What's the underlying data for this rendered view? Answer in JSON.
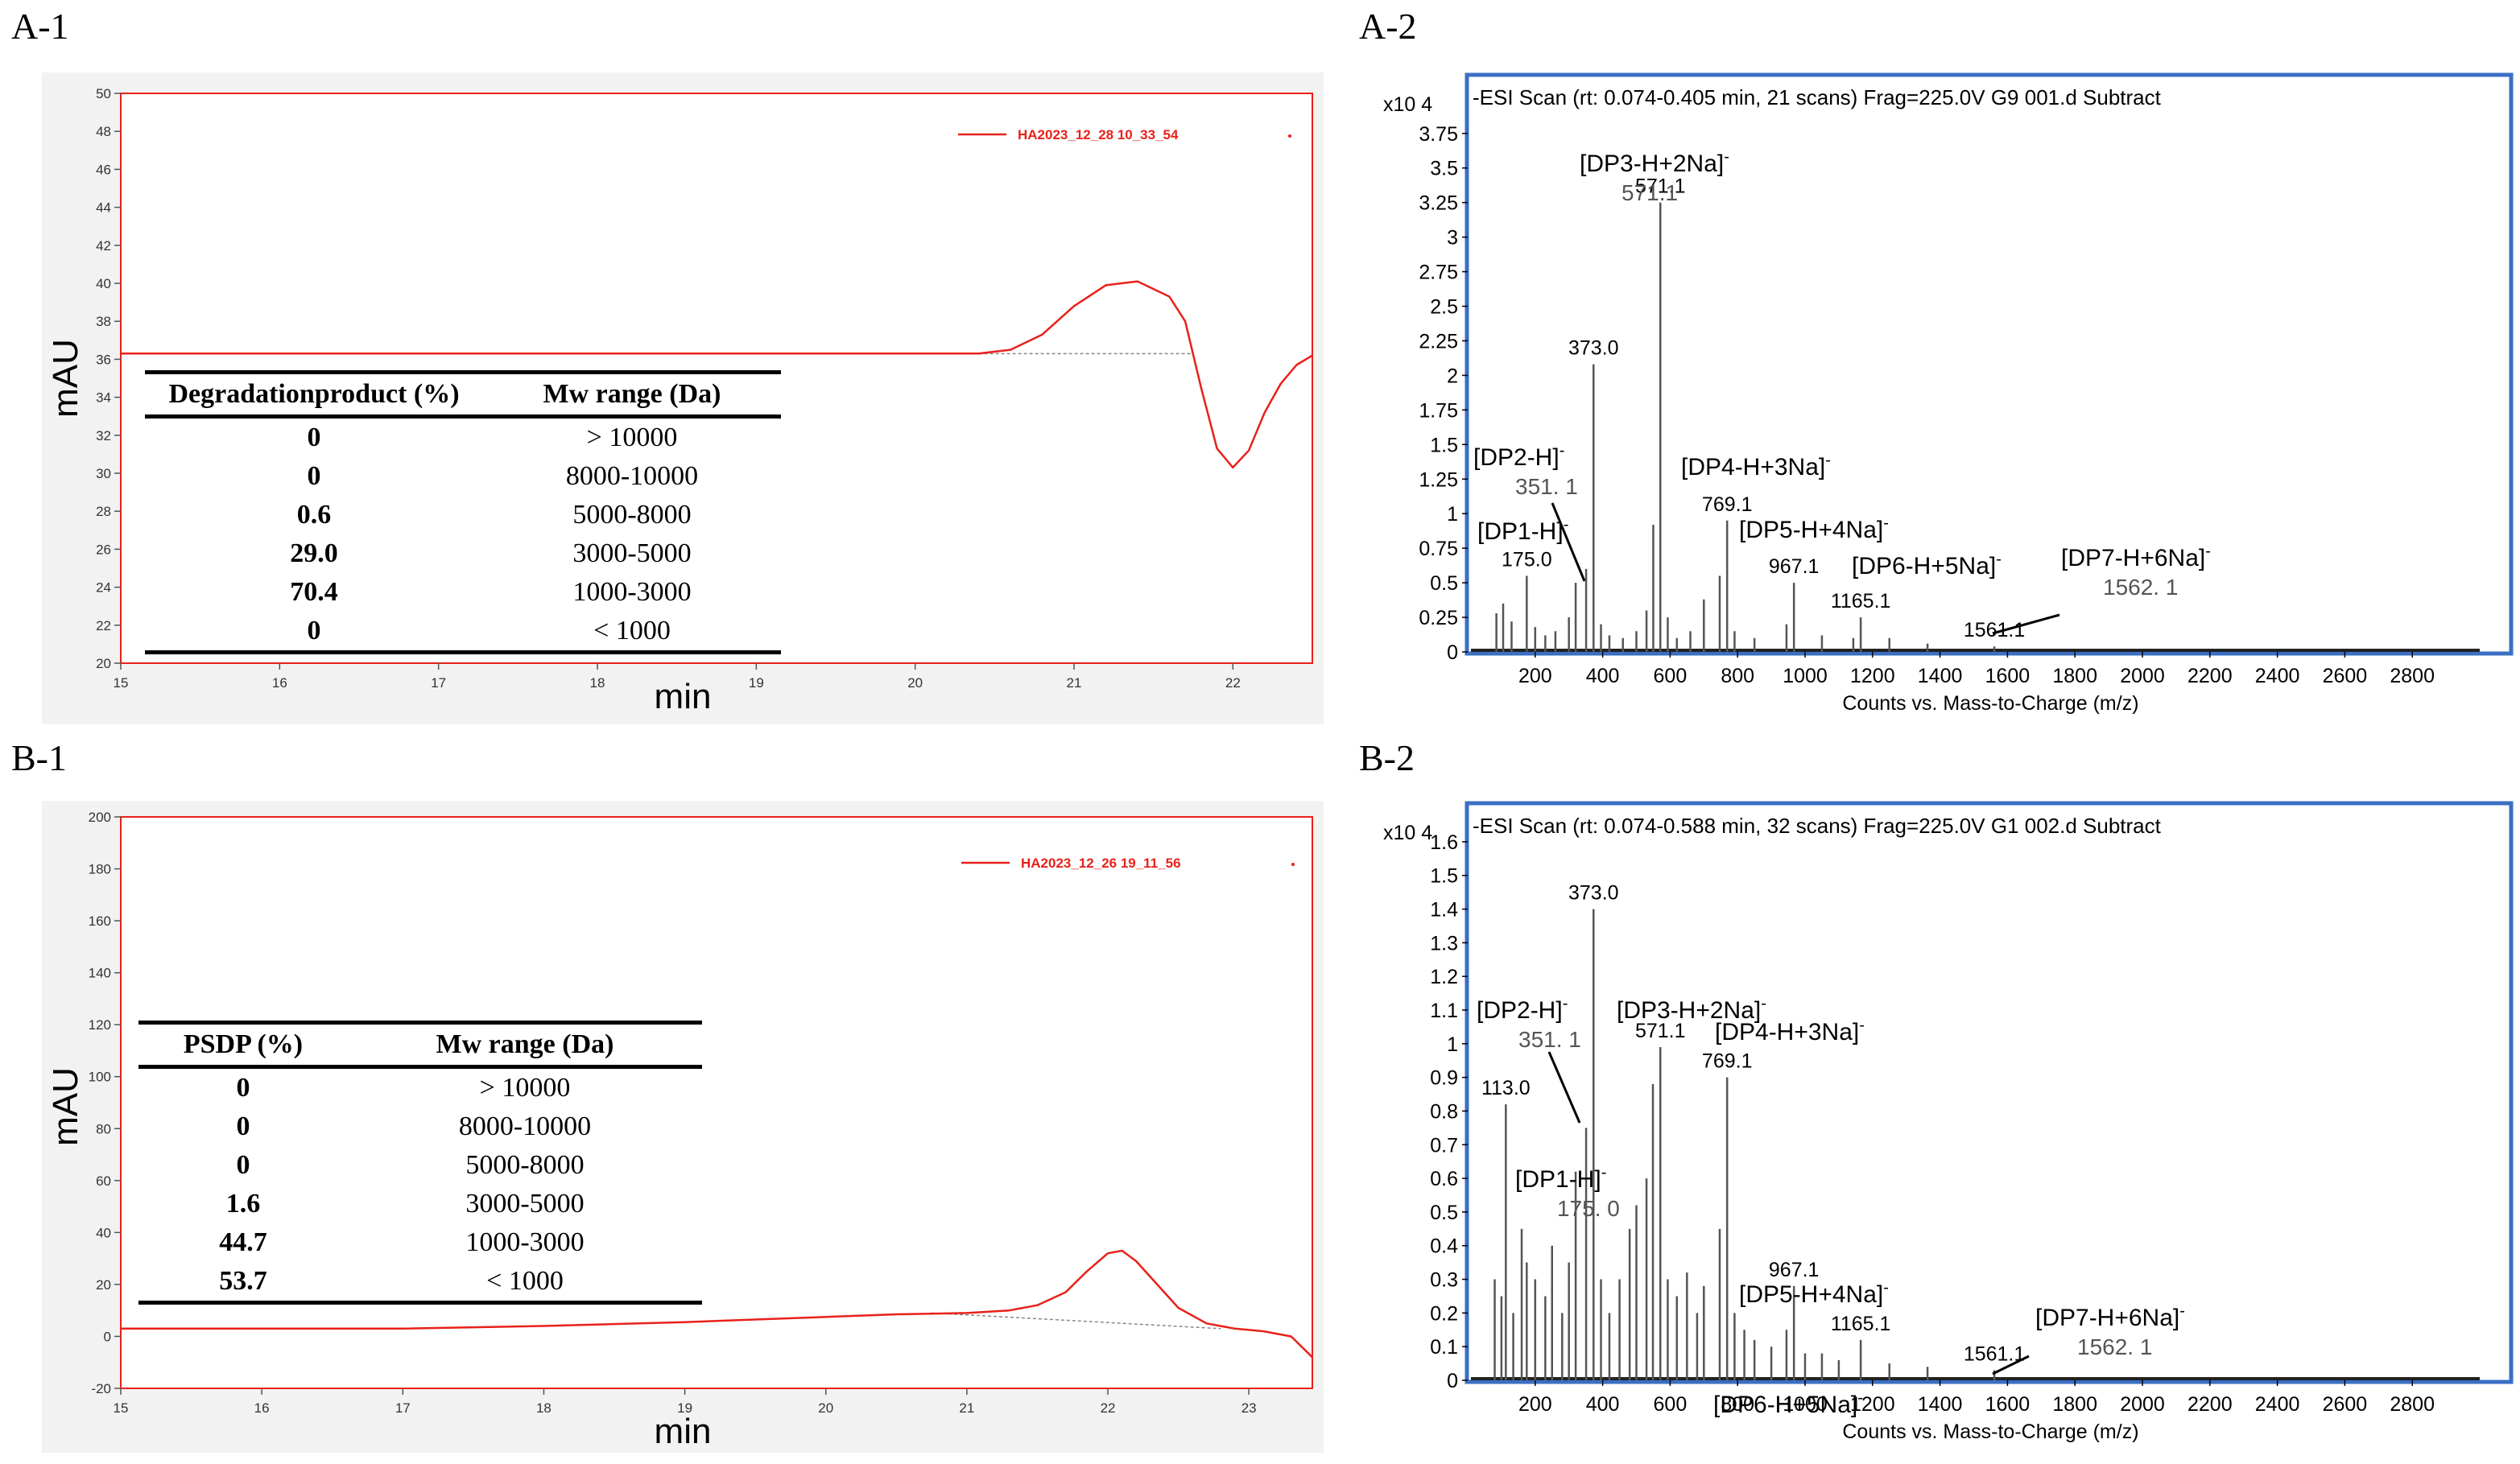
{
  "panels": {
    "a1": "A-1",
    "a2": "A-2",
    "b1": "B-1",
    "b2": "B-2"
  },
  "chart_data": [
    {
      "id": "A-1",
      "type": "line",
      "xlabel": "min",
      "ylabel": "mAU",
      "xlim": [
        15,
        22.5
      ],
      "ylim": [
        20,
        50
      ],
      "xticks": [
        15,
        16,
        17,
        18,
        19,
        20,
        21,
        22
      ],
      "yticks": [
        20,
        22,
        24,
        26,
        28,
        30,
        32,
        34,
        36,
        38,
        40,
        42,
        44,
        46,
        48,
        50
      ],
      "legend": "HA2023_12_28 10_33_54",
      "legend_position": "top-right",
      "color": "#e8211a",
      "series": [
        {
          "name": "HA2023_12_28 10_33_54",
          "x": [
            15,
            16,
            17,
            18,
            19,
            20,
            20.4,
            20.6,
            20.8,
            21.0,
            21.2,
            21.4,
            21.6,
            21.7,
            21.8,
            21.9,
            22.0,
            22.1,
            22.2,
            22.3,
            22.4,
            22.5
          ],
          "y": [
            36.3,
            36.3,
            36.3,
            36.3,
            36.3,
            36.3,
            36.3,
            36.5,
            37.3,
            38.8,
            39.9,
            40.1,
            39.3,
            38.0,
            34.5,
            31.3,
            30.3,
            31.2,
            33.2,
            34.7,
            35.7,
            36.2
          ]
        }
      ],
      "baseline": {
        "x": [
          20.4,
          21.75
        ],
        "y": [
          36.3,
          36.3
        ]
      },
      "table": {
        "headers": [
          "Degradationproduct (%)",
          "Mw range (Da)"
        ],
        "rows": [
          [
            "0",
            "> 10000"
          ],
          [
            "0",
            "8000-10000"
          ],
          [
            "0.6",
            "5000-8000"
          ],
          [
            "29.0",
            "3000-5000"
          ],
          [
            "70.4",
            "1000-3000"
          ],
          [
            "0",
            "< 1000"
          ]
        ]
      }
    },
    {
      "id": "A-2",
      "type": "bar",
      "title": "-ESI Scan (rt: 0.074-0.405 min, 21 scans) Frag=225.0V G9  001.d  Subtract",
      "xlabel": "Counts vs. Mass-to-Charge (m/z)",
      "y_multiplier": "x10 4",
      "xlim": [
        0,
        3000
      ],
      "ylim": [
        0,
        3.9
      ],
      "xticks": [
        200,
        400,
        600,
        800,
        1000,
        1200,
        1400,
        1600,
        1800,
        2000,
        2200,
        2400,
        2600,
        2800
      ],
      "yticks": [
        "0",
        "0.25",
        "0.5",
        "0.75",
        "1",
        "1.25",
        "1.5",
        "1.75",
        "2",
        "2.25",
        "2.5",
        "2.75",
        "3",
        "3.25",
        "3.5",
        "3.75"
      ],
      "peaks": [
        {
          "mz": 85,
          "i": 0.28
        },
        {
          "mz": 105,
          "i": 0.35
        },
        {
          "mz": 130,
          "i": 0.22
        },
        {
          "mz": 175,
          "i": 0.55
        },
        {
          "mz": 200,
          "i": 0.18
        },
        {
          "mz": 230,
          "i": 0.12
        },
        {
          "mz": 260,
          "i": 0.15
        },
        {
          "mz": 300,
          "i": 0.25
        },
        {
          "mz": 320,
          "i": 0.5
        },
        {
          "mz": 351,
          "i": 0.6
        },
        {
          "mz": 373,
          "i": 2.08
        },
        {
          "mz": 395,
          "i": 0.2
        },
        {
          "mz": 420,
          "i": 0.12
        },
        {
          "mz": 460,
          "i": 0.1
        },
        {
          "mz": 500,
          "i": 0.15
        },
        {
          "mz": 530,
          "i": 0.3
        },
        {
          "mz": 550,
          "i": 0.92
        },
        {
          "mz": 571,
          "i": 3.25
        },
        {
          "mz": 593,
          "i": 0.25
        },
        {
          "mz": 620,
          "i": 0.1
        },
        {
          "mz": 660,
          "i": 0.15
        },
        {
          "mz": 700,
          "i": 0.38
        },
        {
          "mz": 747,
          "i": 0.55
        },
        {
          "mz": 769,
          "i": 0.95
        },
        {
          "mz": 791,
          "i": 0.15
        },
        {
          "mz": 850,
          "i": 0.1
        },
        {
          "mz": 945,
          "i": 0.2
        },
        {
          "mz": 967,
          "i": 0.5
        },
        {
          "mz": 1050,
          "i": 0.12
        },
        {
          "mz": 1143,
          "i": 0.1
        },
        {
          "mz": 1165,
          "i": 0.25
        },
        {
          "mz": 1250,
          "i": 0.1
        },
        {
          "mz": 1363,
          "i": 0.06
        },
        {
          "mz": 1561,
          "i": 0.04
        }
      ],
      "labels": [
        {
          "text": "373.0",
          "mz": 373,
          "i": 2.08,
          "font": "sans"
        },
        {
          "text": "571.1",
          "mz": 571,
          "i": 3.25,
          "font": "sans"
        },
        {
          "text": "769.1",
          "mz": 769,
          "i": 0.95,
          "font": "sans"
        },
        {
          "text": "967.1",
          "mz": 967,
          "i": 0.5,
          "font": "sans"
        },
        {
          "text": "175.0",
          "mz": 175,
          "i": 0.55,
          "font": "sans"
        },
        {
          "text": "1165.1",
          "mz": 1165,
          "i": 0.25,
          "font": "sans"
        },
        {
          "text": "1561.1",
          "mz": 1561,
          "i": 0.04,
          "font": "sans"
        }
      ],
      "annotations": [
        {
          "text": "[DP3-H+2Na]",
          "sup": "-",
          "sub_text": "571.1"
        },
        {
          "text": "[DP2-H]",
          "sup": "-",
          "sub_text": "351. 1"
        },
        {
          "text": "[DP4-H+3Na]",
          "sup": "-"
        },
        {
          "text": "[DP1-H]",
          "sup": "-"
        },
        {
          "text": "[DP5-H+4Na]",
          "sup": "-"
        },
        {
          "text": "[DP6-H+5Na]",
          "sup": "-"
        },
        {
          "text": "[DP7-H+6Na]",
          "sup": "-",
          "sub_text": "1562. 1"
        }
      ]
    },
    {
      "id": "B-1",
      "type": "line",
      "xlabel": "min",
      "ylabel": "mAU",
      "xlim": [
        15,
        23.45
      ],
      "ylim": [
        -20,
        200
      ],
      "xticks": [
        15,
        16,
        17,
        18,
        19,
        20,
        21,
        22,
        23
      ],
      "yticks": [
        -20,
        0,
        20,
        40,
        60,
        80,
        100,
        120,
        140,
        160,
        180,
        200
      ],
      "legend": "HA2023_12_26 19_11_56",
      "legend_position": "top-right",
      "color": "#e8211a",
      "series": [
        {
          "name": "HA2023_12_26 19_11_56",
          "x": [
            15,
            16,
            17,
            18,
            19,
            20,
            20.5,
            21,
            21.3,
            21.5,
            21.7,
            21.85,
            22.0,
            22.1,
            22.2,
            22.35,
            22.5,
            22.7,
            22.9,
            23.1,
            23.3,
            23.45
          ],
          "y": [
            3,
            3,
            3,
            4,
            5.5,
            7.5,
            8.5,
            9,
            10,
            12,
            17,
            25,
            32,
            33,
            29,
            20,
            11,
            5,
            3,
            2,
            0,
            -8
          ]
        }
      ],
      "baseline": {
        "x": [
          20.75,
          22.8
        ],
        "y": [
          9,
          3
        ]
      },
      "table": {
        "headers": [
          "PSDP (%)",
          "Mw range (Da)"
        ],
        "rows": [
          [
            "0",
            "> 10000"
          ],
          [
            "0",
            "8000-10000"
          ],
          [
            "0",
            "5000-8000"
          ],
          [
            "1.6",
            "3000-5000"
          ],
          [
            "44.7",
            "1000-3000"
          ],
          [
            "53.7",
            "< 1000"
          ]
        ]
      }
    },
    {
      "id": "B-2",
      "type": "bar",
      "title": "-ESI Scan (rt: 0.074-0.588 min, 32 scans) Frag=225.0V G1  002.d  Subtract",
      "xlabel": "Counts vs. Mass-to-Charge (m/z)",
      "y_multiplier": "x10 4",
      "xlim": [
        0,
        3000
      ],
      "ylim": [
        0,
        1.65
      ],
      "xticks": [
        200,
        400,
        600,
        800,
        1000,
        1200,
        1400,
        1600,
        1800,
        2000,
        2200,
        2400,
        2600,
        2800
      ],
      "yticks": [
        "0",
        "0.1",
        "0.2",
        "0.3",
        "0.4",
        "0.5",
        "0.6",
        "0.7",
        "0.8",
        "0.9",
        "1",
        "1.1",
        "1.2",
        "1.3",
        "1.4",
        "1.5",
        "1.6"
      ],
      "peaks": [
        {
          "mz": 80,
          "i": 0.3
        },
        {
          "mz": 100,
          "i": 0.25
        },
        {
          "mz": 113,
          "i": 0.82
        },
        {
          "mz": 135,
          "i": 0.2
        },
        {
          "mz": 160,
          "i": 0.45
        },
        {
          "mz": 175,
          "i": 0.35
        },
        {
          "mz": 200,
          "i": 0.3
        },
        {
          "mz": 230,
          "i": 0.25
        },
        {
          "mz": 250,
          "i": 0.4
        },
        {
          "mz": 280,
          "i": 0.2
        },
        {
          "mz": 300,
          "i": 0.35
        },
        {
          "mz": 320,
          "i": 0.62
        },
        {
          "mz": 351,
          "i": 0.75
        },
        {
          "mz": 373,
          "i": 1.4
        },
        {
          "mz": 395,
          "i": 0.3
        },
        {
          "mz": 420,
          "i": 0.2
        },
        {
          "mz": 450,
          "i": 0.3
        },
        {
          "mz": 480,
          "i": 0.45
        },
        {
          "mz": 500,
          "i": 0.52
        },
        {
          "mz": 530,
          "i": 0.6
        },
        {
          "mz": 549,
          "i": 0.88
        },
        {
          "mz": 571,
          "i": 0.99
        },
        {
          "mz": 593,
          "i": 0.3
        },
        {
          "mz": 620,
          "i": 0.25
        },
        {
          "mz": 650,
          "i": 0.32
        },
        {
          "mz": 680,
          "i": 0.2
        },
        {
          "mz": 700,
          "i": 0.28
        },
        {
          "mz": 747,
          "i": 0.45
        },
        {
          "mz": 769,
          "i": 0.9
        },
        {
          "mz": 791,
          "i": 0.2
        },
        {
          "mz": 820,
          "i": 0.15
        },
        {
          "mz": 850,
          "i": 0.12
        },
        {
          "mz": 900,
          "i": 0.1
        },
        {
          "mz": 945,
          "i": 0.15
        },
        {
          "mz": 967,
          "i": 0.28
        },
        {
          "mz": 1000,
          "i": 0.08
        },
        {
          "mz": 1050,
          "i": 0.08
        },
        {
          "mz": 1100,
          "i": 0.06
        },
        {
          "mz": 1165,
          "i": 0.12
        },
        {
          "mz": 1250,
          "i": 0.05
        },
        {
          "mz": 1363,
          "i": 0.04
        },
        {
          "mz": 1561,
          "i": 0.03
        }
      ],
      "labels": [
        {
          "text": "373.0",
          "mz": 373,
          "i": 1.4,
          "font": "sans"
        },
        {
          "text": "571.1",
          "mz": 571,
          "i": 0.99,
          "font": "sans"
        },
        {
          "text": "769.1",
          "mz": 769,
          "i": 0.9,
          "font": "sans"
        },
        {
          "text": "113.0",
          "mz": 113,
          "i": 0.82,
          "font": "sans"
        },
        {
          "text": "967.1",
          "mz": 967,
          "i": 0.28,
          "font": "sans"
        },
        {
          "text": "1165.1",
          "mz": 1165,
          "i": 0.12,
          "font": "sans"
        },
        {
          "text": "1561.1",
          "mz": 1561,
          "i": 0.03,
          "font": "sans"
        }
      ],
      "annotations": [
        {
          "text": "[DP2-H]",
          "sup": "-",
          "sub_text": "351. 1"
        },
        {
          "text": "[DP3-H+2Na]",
          "sup": "-"
        },
        {
          "text": "[DP4-H+3Na]",
          "sup": "-"
        },
        {
          "text": "[DP1-H]",
          "sup": "-",
          "sub_text": "175. 0"
        },
        {
          "text": "[DP5-H+4Na]",
          "sup": "-"
        },
        {
          "text": "[DP6-H+5Na]",
          "sup": "-"
        },
        {
          "text": "[DP7-H+6Na]",
          "sup": "-",
          "sub_text": "1562. 1"
        }
      ]
    }
  ]
}
